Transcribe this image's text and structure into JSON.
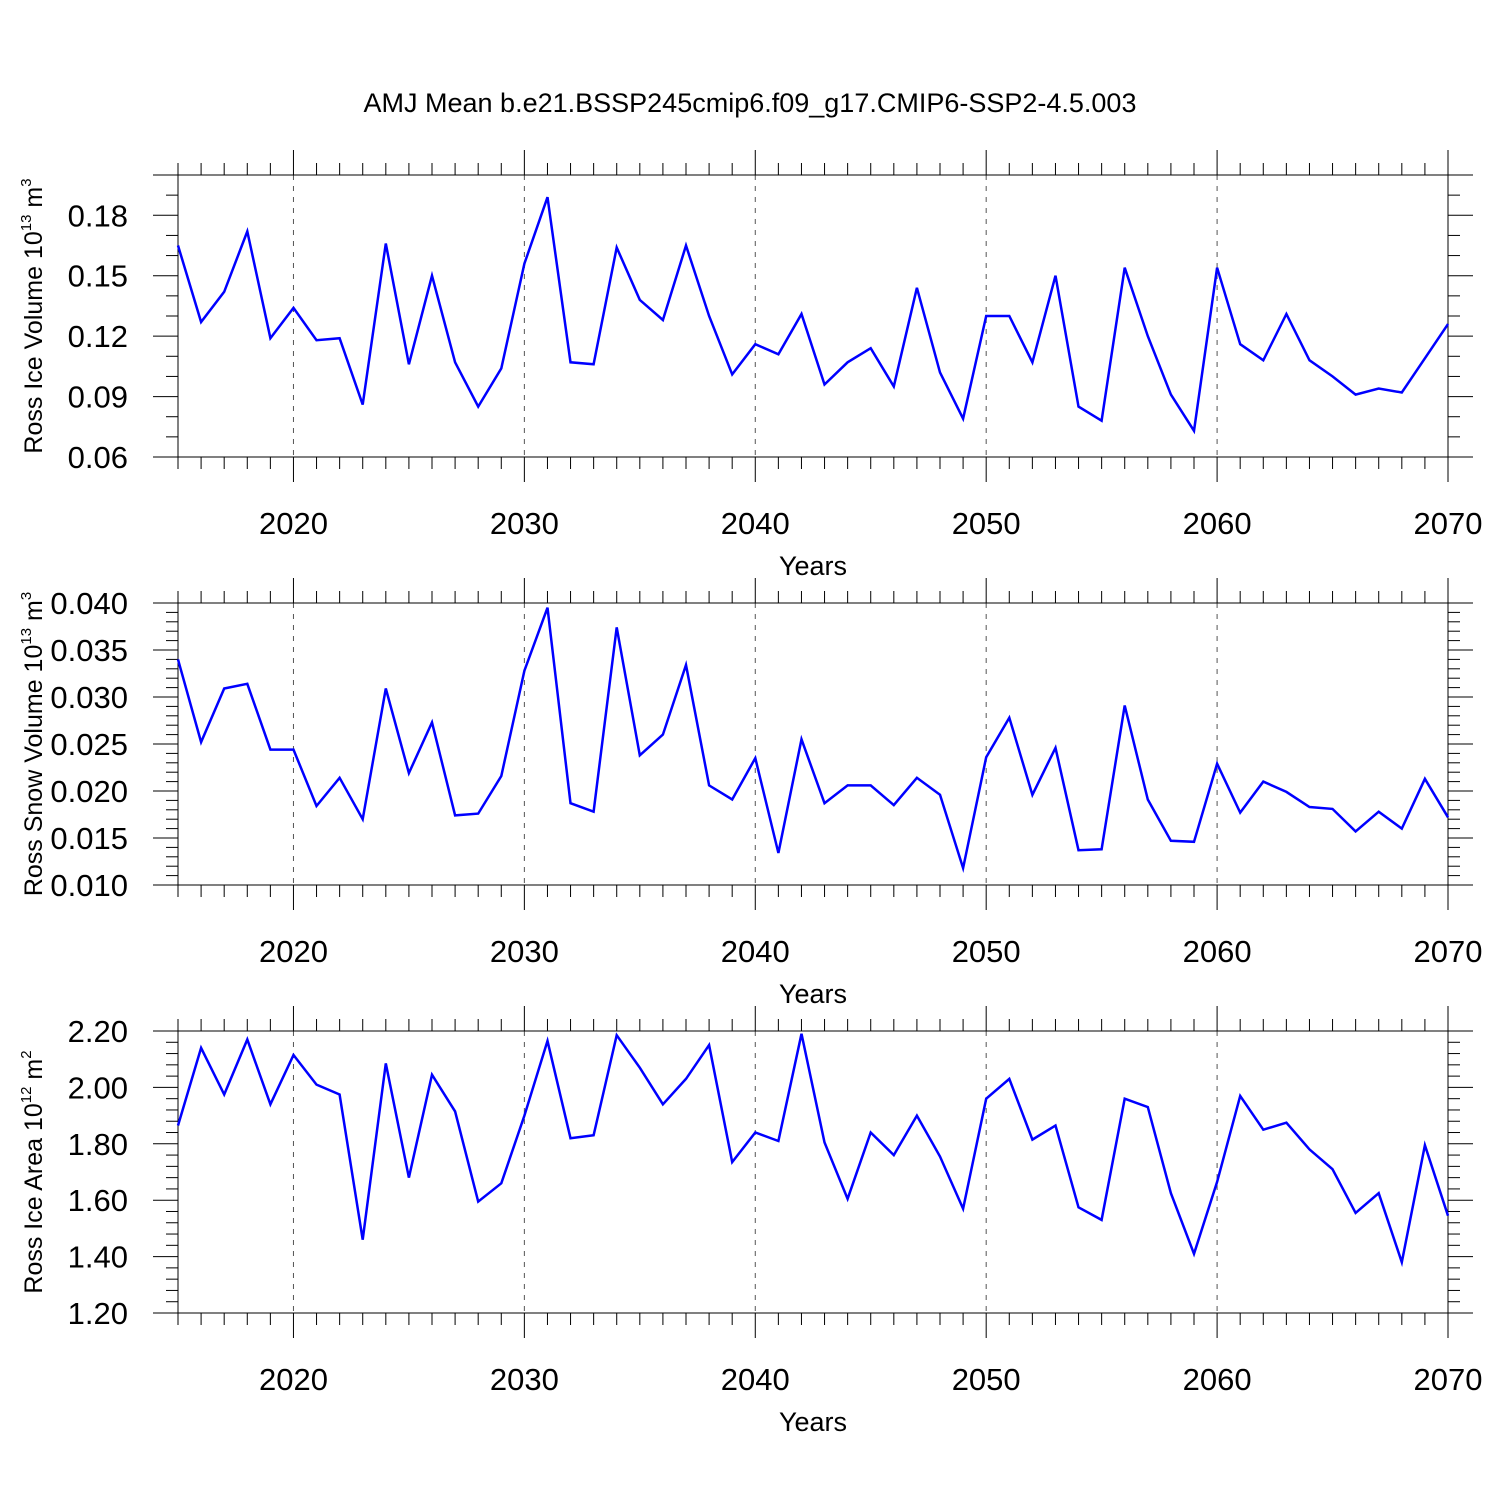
{
  "title": "AMJ Mean b.e21.BSSP245cmip6.f09_g17.CMIP6-SSP2-4.5.003",
  "colors": {
    "line": "#0000ff",
    "grid": "#555555",
    "frame": "#000000"
  },
  "chart_data": [
    {
      "type": "line",
      "name": "ice-volume",
      "ylabel_parts": {
        "main": "Ross Ice Volume 10",
        "exp": "13",
        "unit": " m",
        "unit_exp": "3"
      },
      "xlabel": "Years",
      "xlim": [
        2015,
        2070
      ],
      "ylim": [
        0.06,
        0.2
      ],
      "yticks": [
        0.06,
        0.09,
        0.12,
        0.15,
        0.18
      ],
      "ytick_labels": [
        "0.06",
        "0.09",
        "0.12",
        "0.15",
        "0.18"
      ],
      "yminor_step": 0.01,
      "xticks": [
        2020,
        2030,
        2040,
        2050,
        2060,
        2070
      ],
      "xtick_labels": [
        "2020",
        "2030",
        "2040",
        "2050",
        "2060",
        "2070"
      ],
      "grid_x": [
        2020,
        2030,
        2040,
        2050,
        2060
      ],
      "x": [
        2015,
        2016,
        2017,
        2018,
        2019,
        2020,
        2021,
        2022,
        2023,
        2024,
        2025,
        2026,
        2027,
        2028,
        2029,
        2030,
        2031,
        2032,
        2033,
        2034,
        2035,
        2036,
        2037,
        2038,
        2039,
        2040,
        2041,
        2042,
        2043,
        2044,
        2045,
        2046,
        2047,
        2048,
        2049,
        2050,
        2051,
        2052,
        2053,
        2054,
        2055,
        2056,
        2057,
        2058,
        2059,
        2060,
        2061,
        2062,
        2063,
        2064,
        2065,
        2066,
        2067,
        2068,
        2069,
        2070
      ],
      "values": [
        0.165,
        0.127,
        0.142,
        0.172,
        0.119,
        0.134,
        0.118,
        0.119,
        0.086,
        0.166,
        0.106,
        0.15,
        0.107,
        0.085,
        0.104,
        0.156,
        0.189,
        0.107,
        0.106,
        0.164,
        0.138,
        0.128,
        0.165,
        0.13,
        0.101,
        0.116,
        0.111,
        0.131,
        0.096,
        0.107,
        0.114,
        0.095,
        0.144,
        0.102,
        0.079,
        0.13,
        0.13,
        0.107,
        0.15,
        0.085,
        0.078,
        0.154,
        0.12,
        0.091,
        0.073,
        0.154,
        0.116,
        0.108,
        0.131,
        0.108,
        0.1,
        0.091,
        0.094,
        0.092,
        0.109,
        0.126
      ]
    },
    {
      "type": "line",
      "name": "snow-volume",
      "ylabel_parts": {
        "main": "Ross Snow Volume 10",
        "exp": "13",
        "unit": " m",
        "unit_exp": "3"
      },
      "xlabel": "Years",
      "xlim": [
        2015,
        2070
      ],
      "ylim": [
        0.01,
        0.04
      ],
      "yticks": [
        0.01,
        0.015,
        0.02,
        0.025,
        0.03,
        0.035,
        0.04
      ],
      "ytick_labels": [
        "0.010",
        "0.015",
        "0.020",
        "0.025",
        "0.030",
        "0.035",
        "0.040"
      ],
      "yminor_step": 0.001,
      "xticks": [
        2020,
        2030,
        2040,
        2050,
        2060,
        2070
      ],
      "xtick_labels": [
        "2020",
        "2030",
        "2040",
        "2050",
        "2060",
        "2070"
      ],
      "grid_x": [
        2020,
        2030,
        2040,
        2050,
        2060
      ],
      "x": [
        2015,
        2016,
        2017,
        2018,
        2019,
        2020,
        2021,
        2022,
        2023,
        2024,
        2025,
        2026,
        2027,
        2028,
        2029,
        2030,
        2031,
        2032,
        2033,
        2034,
        2035,
        2036,
        2037,
        2038,
        2039,
        2040,
        2041,
        2042,
        2043,
        2044,
        2045,
        2046,
        2047,
        2048,
        2049,
        2050,
        2051,
        2052,
        2053,
        2054,
        2055,
        2056,
        2057,
        2058,
        2059,
        2060,
        2061,
        2062,
        2063,
        2064,
        2065,
        2066,
        2067,
        2068,
        2069,
        2070
      ],
      "values": [
        0.034,
        0.0252,
        0.0309,
        0.0314,
        0.0244,
        0.0244,
        0.0184,
        0.0214,
        0.017,
        0.0309,
        0.0219,
        0.0273,
        0.0174,
        0.0176,
        0.0216,
        0.0328,
        0.0395,
        0.0187,
        0.0178,
        0.0374,
        0.0238,
        0.026,
        0.0334,
        0.0206,
        0.0191,
        0.0235,
        0.0134,
        0.0255,
        0.0187,
        0.0206,
        0.0206,
        0.0185,
        0.0214,
        0.0196,
        0.0118,
        0.0236,
        0.0278,
        0.0196,
        0.0246,
        0.0137,
        0.0138,
        0.0291,
        0.0191,
        0.0147,
        0.0146,
        0.0229,
        0.0177,
        0.021,
        0.0199,
        0.0183,
        0.0181,
        0.0157,
        0.0178,
        0.016,
        0.0213,
        0.0172
      ]
    },
    {
      "type": "line",
      "name": "ice-area",
      "ylabel_parts": {
        "main": "Ross Ice Area 10",
        "exp": "12",
        "unit": " m",
        "unit_exp": "2"
      },
      "xlabel": "Years",
      "xlim": [
        2015,
        2070
      ],
      "ylim": [
        1.2,
        2.2
      ],
      "yticks": [
        1.2,
        1.4,
        1.6,
        1.8,
        2.0,
        2.2
      ],
      "ytick_labels": [
        "1.20",
        "1.40",
        "1.60",
        "1.80",
        "2.00",
        "2.20"
      ],
      "yminor_step": 0.04,
      "xticks": [
        2020,
        2030,
        2040,
        2050,
        2060,
        2070
      ],
      "xtick_labels": [
        "2020",
        "2030",
        "2040",
        "2050",
        "2060",
        "2070"
      ],
      "grid_x": [
        2020,
        2030,
        2040,
        2050,
        2060
      ],
      "x": [
        2015,
        2016,
        2017,
        2018,
        2019,
        2020,
        2021,
        2022,
        2023,
        2024,
        2025,
        2026,
        2027,
        2028,
        2029,
        2030,
        2031,
        2032,
        2033,
        2034,
        2035,
        2036,
        2037,
        2038,
        2039,
        2040,
        2041,
        2042,
        2043,
        2044,
        2045,
        2046,
        2047,
        2048,
        2049,
        2050,
        2051,
        2052,
        2053,
        2054,
        2055,
        2056,
        2057,
        2058,
        2059,
        2060,
        2061,
        2062,
        2063,
        2064,
        2065,
        2066,
        2067,
        2068,
        2069,
        2070
      ],
      "values": [
        1.865,
        2.14,
        1.975,
        2.17,
        1.94,
        2.115,
        2.01,
        1.975,
        1.46,
        2.085,
        1.68,
        2.045,
        1.915,
        1.595,
        1.66,
        1.9,
        2.165,
        1.82,
        1.83,
        2.185,
        2.07,
        1.94,
        2.03,
        2.15,
        1.735,
        1.84,
        1.81,
        2.19,
        1.805,
        1.605,
        1.84,
        1.76,
        1.9,
        1.755,
        1.57,
        1.96,
        2.03,
        1.815,
        1.865,
        1.575,
        1.53,
        1.96,
        1.93,
        1.625,
        1.41,
        1.665,
        1.97,
        1.85,
        1.875,
        1.78,
        1.71,
        1.555,
        1.625,
        1.38,
        1.795,
        1.545
      ]
    }
  ]
}
